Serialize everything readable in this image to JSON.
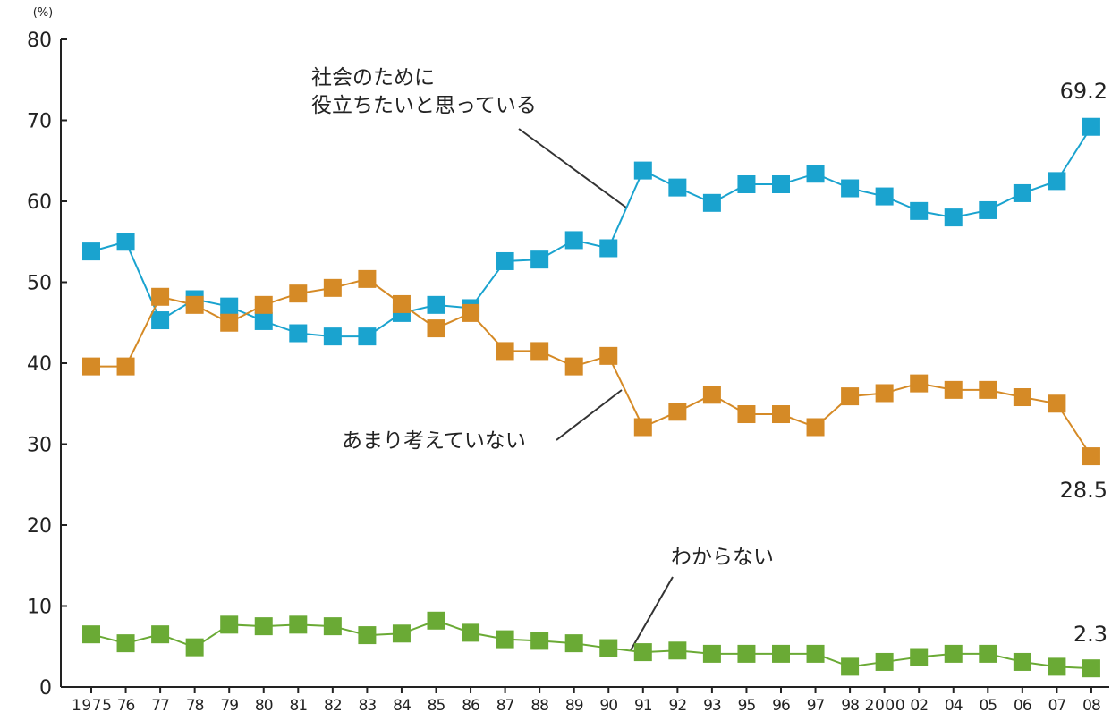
{
  "chart_data": {
    "type": "line",
    "unit_label": "(%)",
    "categories": [
      "1975",
      "76",
      "77",
      "78",
      "79",
      "80",
      "81",
      "82",
      "83",
      "84",
      "85",
      "86",
      "87",
      "88",
      "89",
      "90",
      "91",
      "92",
      "93",
      "95",
      "96",
      "97",
      "98",
      "2000",
      "02",
      "04",
      "05",
      "06",
      "07",
      "08"
    ],
    "ylim": [
      0,
      80
    ],
    "y_ticks": [
      "0",
      "10",
      "20",
      "30",
      "40",
      "50",
      "60",
      "70",
      "80"
    ],
    "grid": false,
    "series": [
      {
        "name": "社会のために役立ちたいと思っている",
        "label_lines": [
          "社会のために",
          "役立ちたいと思っている"
        ],
        "color": "#1aa3cf",
        "values": [
          53.8,
          55.0,
          45.3,
          47.9,
          47.0,
          45.2,
          43.7,
          43.3,
          43.3,
          46.2,
          47.2,
          46.8,
          52.6,
          52.8,
          55.2,
          54.2,
          63.8,
          61.7,
          59.8,
          62.1,
          62.1,
          63.4,
          61.6,
          60.6,
          58.8,
          58.0,
          58.9,
          61.0,
          62.5,
          69.2
        ],
        "end_label": "69.2"
      },
      {
        "name": "あまり考えていない",
        "label_lines": [
          "あまり考えていない"
        ],
        "color": "#d58a26",
        "values": [
          39.6,
          39.6,
          48.2,
          47.2,
          45.0,
          47.2,
          48.6,
          49.3,
          50.4,
          47.3,
          44.3,
          46.2,
          41.5,
          41.5,
          39.6,
          40.9,
          32.1,
          34.0,
          36.1,
          33.7,
          33.7,
          32.1,
          35.9,
          36.3,
          37.5,
          36.7,
          36.7,
          35.8,
          35.0,
          28.5
        ],
        "end_label": "28.5"
      },
      {
        "name": "わからない",
        "label_lines": [
          "わからない"
        ],
        "color": "#6aaa35",
        "values": [
          6.5,
          5.4,
          6.5,
          4.9,
          7.7,
          7.5,
          7.7,
          7.5,
          6.4,
          6.6,
          8.2,
          6.7,
          5.9,
          5.7,
          5.4,
          4.8,
          4.3,
          4.5,
          4.1,
          4.1,
          4.1,
          4.1,
          2.5,
          3.1,
          3.7,
          4.1,
          4.1,
          3.1,
          2.5,
          2.3
        ],
        "end_label": "2.3"
      }
    ]
  }
}
